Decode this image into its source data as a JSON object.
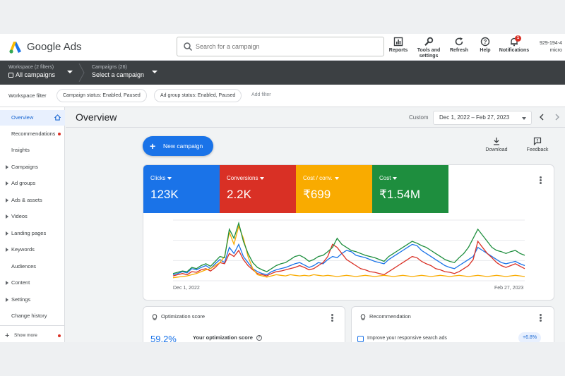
{
  "header": {
    "brand": "Google Ads",
    "search_placeholder": "Search for a campaign",
    "tools": [
      {
        "label": "Reports",
        "icon": "reports-icon"
      },
      {
        "label": "Tools and settings",
        "icon": "wrench-icon"
      },
      {
        "label": "Refresh",
        "icon": "refresh-icon"
      },
      {
        "label": "Help",
        "icon": "help-icon"
      },
      {
        "label": "Notifications",
        "icon": "bell-icon",
        "badge": "1"
      }
    ],
    "account_id": "929-194-4",
    "account_name": "micro"
  },
  "scope": {
    "workspace_label": "Workspace (2 filters)",
    "workspace_value": "All campaigns",
    "campaigns_label": "Campaigns (26)",
    "campaigns_value": "Select a campaign"
  },
  "filters": {
    "label": "Workspace filter",
    "chips": [
      "Campaign status: Enabled, Paused",
      "Ad group status: Enabled, Paused"
    ],
    "add_filter": "Add filter"
  },
  "sidebar": {
    "items": [
      {
        "label": "Overview",
        "active": true,
        "expandable": false
      },
      {
        "label": "Recommendations",
        "dot": true,
        "expandable": false
      },
      {
        "label": "Insights",
        "expandable": false
      },
      {
        "label": "Campaigns",
        "expandable": true
      },
      {
        "label": "Ad groups",
        "expandable": true
      },
      {
        "label": "Ads & assets",
        "expandable": true
      },
      {
        "label": "Videos",
        "expandable": true
      },
      {
        "label": "Landing pages",
        "expandable": true
      },
      {
        "label": "Keywords",
        "expandable": true
      },
      {
        "label": "Audiences",
        "expandable": false
      },
      {
        "label": "Content",
        "expandable": true
      },
      {
        "label": "Settings",
        "expandable": true
      },
      {
        "label": "Change history",
        "expandable": false
      }
    ],
    "show_more": "Show more"
  },
  "main": {
    "title": "Overview",
    "range_type": "Custom",
    "date_range": "Dec 1, 2022 – Feb 27, 2023",
    "new_campaign": "New campaign",
    "download": "Download",
    "feedback": "Feedback"
  },
  "metrics": [
    {
      "label": "Clicks",
      "value": "123K",
      "color": "#1a73e8"
    },
    {
      "label": "Conversions",
      "value": "2.2K",
      "color": "#d93025"
    },
    {
      "label": "Cost / conv.",
      "value": "₹699",
      "color": "#f9ab00"
    },
    {
      "label": "Cost",
      "value": "₹1.54M",
      "color": "#1e8e3e"
    }
  ],
  "chart_data": {
    "type": "line",
    "x_start_label": "Dec 1, 2022",
    "x_end_label": "Feb 27, 2023",
    "series": [
      {
        "name": "Clicks",
        "color": "#1a73e8",
        "values": [
          10,
          12,
          15,
          13,
          20,
          18,
          22,
          25,
          20,
          28,
          35,
          30,
          55,
          45,
          60,
          40,
          30,
          20,
          15,
          12,
          10,
          15,
          18,
          20,
          22,
          25,
          28,
          30,
          26,
          22,
          25,
          30,
          28,
          35,
          40,
          38,
          45,
          50,
          48,
          42,
          40,
          38,
          35,
          32,
          30,
          28,
          35,
          40,
          45,
          50,
          55,
          60,
          58,
          50,
          45,
          40,
          35,
          30,
          25,
          22,
          20,
          25,
          30,
          35,
          40,
          55,
          50,
          45,
          40,
          35,
          30,
          28,
          30,
          32,
          28,
          25
        ]
      },
      {
        "name": "Conversions",
        "color": "#d93025",
        "values": [
          8,
          10,
          12,
          10,
          15,
          14,
          18,
          20,
          16,
          22,
          30,
          28,
          45,
          40,
          50,
          35,
          25,
          18,
          12,
          10,
          8,
          12,
          15,
          16,
          18,
          20,
          22,
          25,
          22,
          18,
          20,
          25,
          30,
          40,
          60,
          55,
          45,
          35,
          30,
          25,
          20,
          18,
          15,
          14,
          12,
          10,
          15,
          20,
          25,
          30,
          35,
          40,
          38,
          32,
          28,
          25,
          20,
          18,
          15,
          14,
          12,
          15,
          20,
          25,
          35,
          65,
          55,
          45,
          38,
          30,
          25,
          22,
          25,
          28,
          24,
          20
        ]
      },
      {
        "name": "Cost / conv.",
        "color": "#f9ab00",
        "values": [
          5,
          6,
          7,
          8,
          10,
          12,
          15,
          18,
          20,
          25,
          30,
          40,
          80,
          60,
          90,
          70,
          40,
          20,
          10,
          8,
          6,
          8,
          10,
          9,
          8,
          10,
          9,
          8,
          9,
          8,
          10,
          9,
          8,
          9,
          8,
          7,
          8,
          9,
          8,
          7,
          8,
          9,
          8,
          7,
          8,
          9,
          8,
          7,
          8,
          9,
          8,
          7,
          8,
          9,
          8,
          7,
          8,
          9,
          8,
          7,
          8,
          9,
          8,
          7,
          8,
          9,
          8,
          7,
          8,
          9,
          8,
          7,
          8,
          9,
          8,
          7
        ]
      },
      {
        "name": "Cost",
        "color": "#1e8e3e",
        "values": [
          12,
          14,
          16,
          15,
          22,
          20,
          25,
          28,
          24,
          32,
          40,
          38,
          85,
          70,
          95,
          65,
          45,
          30,
          22,
          18,
          15,
          20,
          25,
          28,
          30,
          35,
          40,
          42,
          38,
          32,
          35,
          40,
          42,
          48,
          55,
          70,
          60,
          55,
          50,
          48,
          45,
          42,
          40,
          38,
          35,
          32,
          40,
          45,
          50,
          55,
          60,
          65,
          62,
          58,
          55,
          50,
          45,
          40,
          35,
          32,
          30,
          38,
          45,
          55,
          70,
          85,
          75,
          65,
          55,
          50,
          48,
          45,
          48,
          50,
          45,
          42
        ]
      }
    ]
  },
  "cards": {
    "optimization_title": "Optimization score",
    "optimization_score": "59.2%",
    "optimization_label": "Your optimization score",
    "recommendation_title": "Recommendation",
    "recommendation_item": "Improve your responsive search ads",
    "recommendation_uplift": "+6.8%"
  }
}
